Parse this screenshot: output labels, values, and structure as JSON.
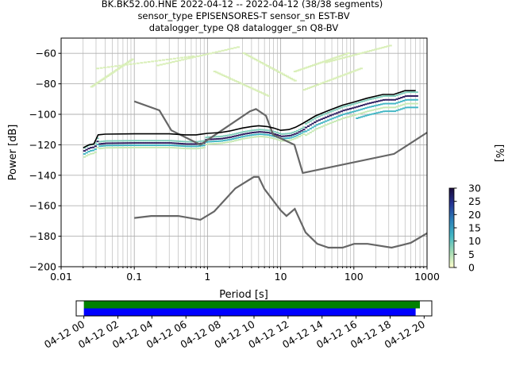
{
  "chart_data": {
    "type": "heatmap",
    "title_lines": [
      "BK.BK52.00.HNE   2022-04-12 -- 2022-04-12  (38/38 segments)",
      "sensor_type EPISENSORES-T sensor_sn EST-BV",
      "datalogger_type Q8 datalogger_sn Q8-BV"
    ],
    "xlabel": "Period [s]",
    "ylabel": "Power [dB]",
    "x_scale": "log",
    "xlim": [
      0.01,
      1000
    ],
    "ylim": [
      -200,
      -50
    ],
    "x_tick_labels": [
      "0.01",
      "0.1",
      "1",
      "10",
      "100",
      "1000"
    ],
    "y_ticks": [
      -200,
      -180,
      -160,
      -140,
      -120,
      -100,
      -80,
      -60
    ],
    "y_tick_labels": [
      "−200",
      "−180",
      "−160",
      "−140",
      "−120",
      "−100",
      "−80",
      "−60"
    ],
    "grid": true,
    "colorbar": {
      "label": "[%]",
      "ticks": [
        0,
        5,
        10,
        15,
        20,
        25,
        30
      ],
      "tick_labels": [
        "0",
        "5",
        "10",
        "15",
        "20",
        "25",
        "30"
      ],
      "range": [
        0,
        30
      ],
      "colormap": [
        "#ffffcc",
        "#a1dab4",
        "#41b6c4",
        "#2c7fb8",
        "#253494",
        "#1a0a3a"
      ]
    },
    "noise_model_high": {
      "name": "NHNM",
      "color": "#666666",
      "points": [
        [
          0.1,
          -91.5
        ],
        [
          0.22,
          -97.4
        ],
        [
          0.32,
          -110.5
        ],
        [
          0.8,
          -120
        ],
        [
          3.8,
          -98
        ],
        [
          4.6,
          -96.5
        ],
        [
          6.3,
          -101
        ],
        [
          7.9,
          -113.5
        ],
        [
          15.4,
          -120
        ],
        [
          20,
          -138.5
        ],
        [
          354,
          -126
        ],
        [
          1000,
          -112
        ]
      ]
    },
    "noise_model_low": {
      "name": "NLNM",
      "color": "#666666",
      "points": [
        [
          0.1,
          -168
        ],
        [
          0.17,
          -166.7
        ],
        [
          0.4,
          -166.7
        ],
        [
          0.8,
          -169.2
        ],
        [
          1.24,
          -163.7
        ],
        [
          2.4,
          -148.6
        ],
        [
          4.3,
          -141.1
        ],
        [
          5.0,
          -141.1
        ],
        [
          6.0,
          -149
        ],
        [
          10,
          -163
        ],
        [
          12,
          -166.7
        ],
        [
          15.6,
          -162.1
        ],
        [
          21.9,
          -177.5
        ],
        [
          31.6,
          -185
        ],
        [
          45,
          -187.5
        ],
        [
          70,
          -187.5
        ],
        [
          101,
          -185
        ],
        [
          154,
          -185
        ],
        [
          328,
          -187.5
        ],
        [
          600,
          -184.4
        ],
        [
          1000,
          -178
        ]
      ]
    },
    "psd_curve": {
      "color": "#000000",
      "points": [
        [
          0.02,
          -122
        ],
        [
          0.024,
          -120
        ],
        [
          0.028,
          -119.5
        ],
        [
          0.032,
          -113.5
        ],
        [
          0.04,
          -113
        ],
        [
          0.1,
          -112.8
        ],
        [
          0.3,
          -112.8
        ],
        [
          0.5,
          -113.5
        ],
        [
          0.7,
          -113.5
        ],
        [
          1.0,
          -112.5
        ],
        [
          1.5,
          -112
        ],
        [
          2.0,
          -111
        ],
        [
          3.0,
          -109
        ],
        [
          4.0,
          -108
        ],
        [
          5.0,
          -107.5
        ],
        [
          6.5,
          -108
        ],
        [
          8.0,
          -109
        ],
        [
          10.0,
          -110.5
        ],
        [
          13.0,
          -110
        ],
        [
          16.0,
          -108.5
        ],
        [
          20.0,
          -106
        ],
        [
          30.0,
          -101
        ],
        [
          45.0,
          -97.5
        ],
        [
          70.0,
          -94
        ],
        [
          100.0,
          -92
        ],
        [
          150.0,
          -89.5
        ],
        [
          250.0,
          -87
        ],
        [
          350.0,
          -87
        ],
        [
          500.0,
          -84.5
        ],
        [
          700.0,
          -84.5
        ]
      ]
    },
    "timeline": {
      "tick_labels": [
        "04-12 00",
        "04-12 02",
        "04-12 04",
        "04-12 06",
        "04-12 08",
        "04-12 10",
        "04-12 12",
        "04-12 14",
        "04-12 16",
        "04-12 18",
        "04-12 20"
      ],
      "data_bar_color": "#008000",
      "psd_bar_color": "#0000ff",
      "data_hours": [
        0,
        19.75
      ],
      "psd_hours": [
        0,
        19.5
      ],
      "xlim_hours": [
        -0.45,
        20.45
      ]
    }
  }
}
